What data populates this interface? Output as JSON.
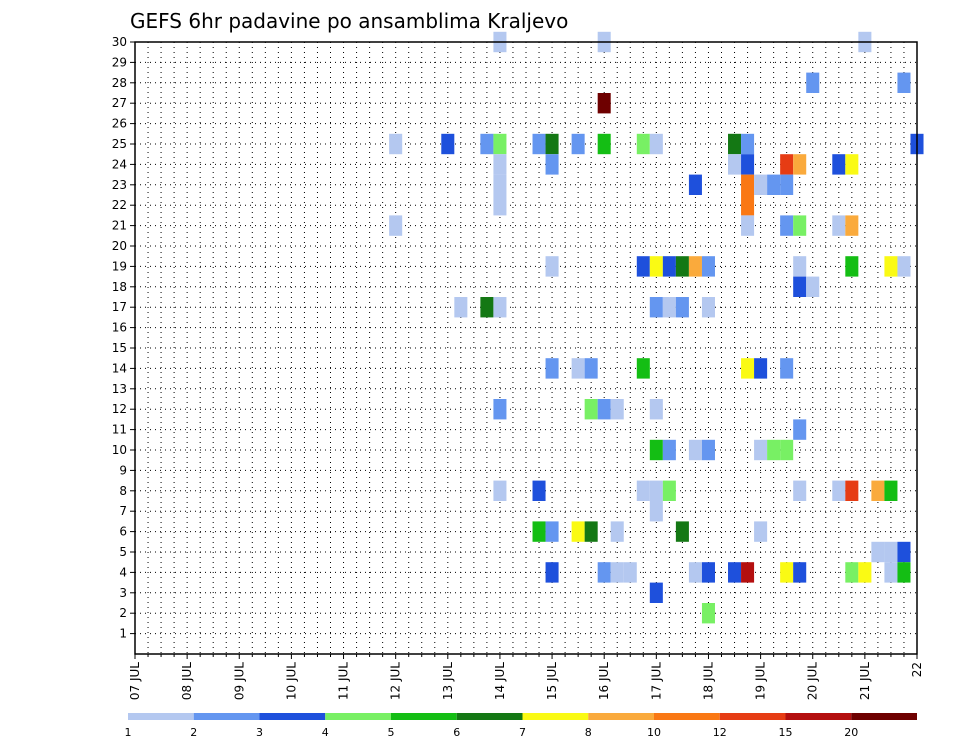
{
  "chart_data": {
    "type": "heatmap",
    "title": "GEFS 6hr padavine po ansamblima Kraljevo",
    "y_ticks": [
      "1",
      "2",
      "3",
      "4",
      "5",
      "6",
      "7",
      "8",
      "9",
      "10",
      "11",
      "12",
      "13",
      "14",
      "15",
      "16",
      "17",
      "18",
      "19",
      "20",
      "21",
      "22",
      "23",
      "24",
      "25",
      "26",
      "27",
      "28",
      "29",
      "30"
    ],
    "x_ticks": [
      "07 JUL",
      "08 JUL",
      "09 JUL",
      "10 JUL",
      "11 JUL",
      "12 JUL",
      "13 JUL",
      "14 JUL",
      "15 JUL",
      "16 JUL",
      "17 JUL",
      "18 JUL",
      "19 JUL",
      "20 JUL",
      "21 JUL",
      "22"
    ],
    "x_unit": "day index from 07 JUL (x-tick label)",
    "y_unit": "ensemble member",
    "grid": true,
    "colorbar": {
      "labels": [
        "1",
        "2",
        "3",
        "4",
        "5",
        "6",
        "7",
        "8",
        "10",
        "12",
        "15",
        "20"
      ],
      "colors": [
        "#b4c8f0",
        "#6496f0",
        "#1e50dc",
        "#78f064",
        "#14be14",
        "#147814",
        "#fafa14",
        "#faaa3c",
        "#fa7814",
        "#e63c14",
        "#b40f0f",
        "#6e0000"
      ]
    },
    "cells": [
      [
        7.0,
        30,
        0
      ],
      [
        9.0,
        30,
        0
      ],
      [
        14.0,
        30,
        0
      ],
      [
        9.0,
        27,
        11
      ],
      [
        13.0,
        28,
        1
      ],
      [
        14.75,
        28,
        1
      ],
      [
        5.0,
        25,
        0
      ],
      [
        6.0,
        25,
        2
      ],
      [
        6.75,
        25,
        1
      ],
      [
        7.0,
        25,
        3
      ],
      [
        7.75,
        25,
        1
      ],
      [
        8.0,
        25,
        5
      ],
      [
        8.5,
        25,
        1
      ],
      [
        9.0,
        25,
        4
      ],
      [
        9.75,
        25,
        3
      ],
      [
        10.0,
        25,
        0
      ],
      [
        11.5,
        25,
        5
      ],
      [
        11.75,
        25,
        1
      ],
      [
        15.0,
        25,
        2
      ],
      [
        7.0,
        24,
        0
      ],
      [
        8.0,
        24,
        1
      ],
      [
        11.5,
        24,
        0
      ],
      [
        11.75,
        24,
        2
      ],
      [
        12.5,
        24,
        9
      ],
      [
        12.75,
        24,
        7
      ],
      [
        13.5,
        24,
        2
      ],
      [
        13.75,
        24,
        6
      ],
      [
        7.0,
        23,
        0
      ],
      [
        10.75,
        23,
        2
      ],
      [
        11.75,
        23,
        8
      ],
      [
        12.0,
        23,
        0
      ],
      [
        12.25,
        23,
        1
      ],
      [
        12.5,
        23,
        1
      ],
      [
        7.0,
        22,
        0
      ],
      [
        11.75,
        22,
        8
      ],
      [
        5.0,
        21,
        0
      ],
      [
        11.75,
        21,
        0
      ],
      [
        12.5,
        21,
        1
      ],
      [
        12.75,
        21,
        3
      ],
      [
        13.5,
        21,
        0
      ],
      [
        13.75,
        21,
        7
      ],
      [
        8.0,
        19,
        0
      ],
      [
        9.75,
        19,
        2
      ],
      [
        10.0,
        19,
        6
      ],
      [
        10.25,
        19,
        2
      ],
      [
        10.5,
        19,
        5
      ],
      [
        10.75,
        19,
        7
      ],
      [
        11.0,
        19,
        1
      ],
      [
        12.75,
        19,
        0
      ],
      [
        13.75,
        19,
        4
      ],
      [
        14.5,
        19,
        6
      ],
      [
        14.75,
        19,
        0
      ],
      [
        12.75,
        18,
        2
      ],
      [
        13.0,
        18,
        0
      ],
      [
        6.25,
        17,
        0
      ],
      [
        6.75,
        17,
        5
      ],
      [
        7.0,
        17,
        0
      ],
      [
        10.0,
        17,
        1
      ],
      [
        10.25,
        17,
        0
      ],
      [
        10.5,
        17,
        1
      ],
      [
        11.0,
        17,
        0
      ],
      [
        8.0,
        14,
        1
      ],
      [
        8.5,
        14,
        0
      ],
      [
        8.75,
        14,
        1
      ],
      [
        9.75,
        14,
        4
      ],
      [
        11.75,
        14,
        6
      ],
      [
        12.0,
        14,
        2
      ],
      [
        12.5,
        14,
        1
      ],
      [
        7.0,
        12,
        1
      ],
      [
        8.75,
        12,
        3
      ],
      [
        9.0,
        12,
        1
      ],
      [
        9.25,
        12,
        0
      ],
      [
        10.0,
        12,
        0
      ],
      [
        12.75,
        11,
        1
      ],
      [
        10.0,
        10,
        4
      ],
      [
        10.25,
        10,
        1
      ],
      [
        10.75,
        10,
        0
      ],
      [
        11.0,
        10,
        1
      ],
      [
        12.0,
        10,
        0
      ],
      [
        12.25,
        10,
        3
      ],
      [
        12.5,
        10,
        3
      ],
      [
        7.0,
        8,
        0
      ],
      [
        7.75,
        8,
        2
      ],
      [
        9.75,
        8,
        0
      ],
      [
        10.0,
        8,
        0
      ],
      [
        10.25,
        8,
        3
      ],
      [
        12.75,
        8,
        0
      ],
      [
        13.5,
        8,
        0
      ],
      [
        13.75,
        8,
        9
      ],
      [
        14.25,
        8,
        7
      ],
      [
        14.5,
        8,
        4
      ],
      [
        10.0,
        7,
        0
      ],
      [
        7.75,
        6,
        4
      ],
      [
        8.0,
        6,
        1
      ],
      [
        8.5,
        6,
        6
      ],
      [
        8.75,
        6,
        5
      ],
      [
        9.25,
        6,
        0
      ],
      [
        10.5,
        6,
        5
      ],
      [
        12.0,
        6,
        0
      ],
      [
        14.25,
        5,
        0
      ],
      [
        14.5,
        5,
        0
      ],
      [
        14.75,
        5,
        2
      ],
      [
        8.0,
        4,
        2
      ],
      [
        9.0,
        4,
        1
      ],
      [
        9.25,
        4,
        0
      ],
      [
        9.5,
        4,
        0
      ],
      [
        10.75,
        4,
        0
      ],
      [
        11.0,
        4,
        2
      ],
      [
        11.5,
        4,
        2
      ],
      [
        11.75,
        4,
        10
      ],
      [
        12.5,
        4,
        6
      ],
      [
        12.75,
        4,
        2
      ],
      [
        13.75,
        4,
        3
      ],
      [
        14.0,
        4,
        6
      ],
      [
        14.5,
        4,
        0
      ],
      [
        14.75,
        4,
        4
      ],
      [
        10.0,
        3,
        2
      ],
      [
        11.0,
        2,
        3
      ]
    ],
    "cells_note_format": "[x_day_from_07JUL, member, color_index]"
  }
}
